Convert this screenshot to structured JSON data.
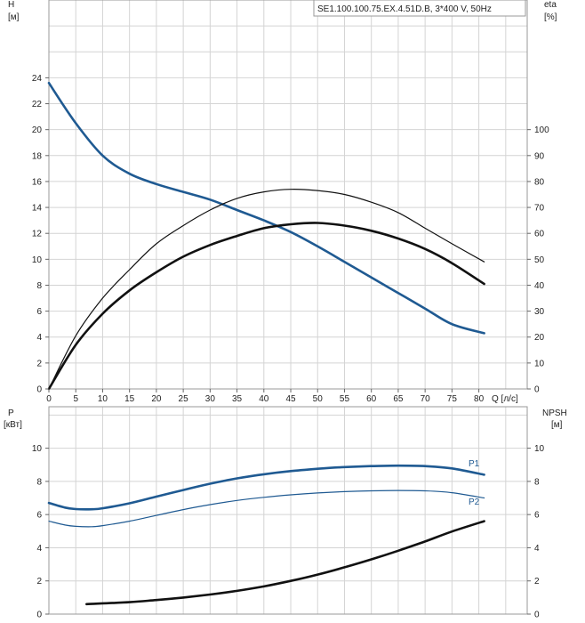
{
  "chart_data": [
    {
      "type": "line",
      "legend_box": "SE1.100.100.75.EX.4.51D.B, 3*400 V, 50Hz",
      "x_label": "Q [л/с]",
      "x_ticks": [
        0,
        5,
        10,
        15,
        20,
        25,
        30,
        35,
        40,
        45,
        50,
        55,
        60,
        65,
        70,
        75,
        80
      ],
      "xlim": [
        0,
        89
      ],
      "y_left_label_line1": "H",
      "y_left_label_line2": "[м]",
      "y_left_ticks": [
        0,
        2,
        4,
        6,
        8,
        10,
        12,
        14,
        16,
        18,
        20,
        22,
        24
      ],
      "ylim_left": [
        0,
        30
      ],
      "y_right_label_line1": "eta",
      "y_right_label_line2": "[%]",
      "y_right_ticks": [
        0,
        10,
        20,
        30,
        40,
        50,
        60,
        70,
        80,
        90,
        100
      ],
      "ylim_right": [
        0,
        150
      ],
      "grid": true,
      "series": [
        {
          "key": "H",
          "axis": "left",
          "color": "#1f5a92",
          "width": 2.6,
          "x": [
            0,
            5,
            10,
            15,
            20,
            25,
            30,
            35,
            40,
            45,
            50,
            55,
            60,
            65,
            70,
            75,
            81
          ],
          "y": [
            23.6,
            20.5,
            18.0,
            16.6,
            15.8,
            15.2,
            14.6,
            13.8,
            13.0,
            12.1,
            11.0,
            9.8,
            8.6,
            7.4,
            6.2,
            5.0,
            4.3
          ]
        },
        {
          "key": "eta_thin",
          "axis": "right",
          "color": "#111111",
          "width": 1.2,
          "x": [
            0,
            5,
            10,
            15,
            20,
            25,
            30,
            35,
            40,
            45,
            50,
            55,
            60,
            65,
            70,
            75,
            81
          ],
          "y": [
            0,
            20.5,
            35,
            46,
            56,
            63,
            69,
            73.5,
            76,
            77,
            76.5,
            75,
            72,
            68,
            62,
            56,
            49
          ]
        },
        {
          "key": "eta_thick",
          "axis": "right",
          "color": "#111111",
          "width": 2.6,
          "x": [
            0,
            5,
            10,
            15,
            20,
            25,
            30,
            35,
            40,
            45,
            50,
            55,
            60,
            65,
            70,
            75,
            81
          ],
          "y": [
            0,
            17,
            29,
            38,
            45,
            51,
            55.5,
            59,
            62,
            63.5,
            64,
            63,
            61,
            58,
            54,
            48.5,
            40.5
          ]
        }
      ]
    },
    {
      "type": "line",
      "y_left_label_line1": "P",
      "y_left_label_line2": "[кВт]",
      "y_left_ticks": [
        0,
        2,
        4,
        6,
        8,
        10
      ],
      "ylim_left": [
        0,
        12.5
      ],
      "y_right_label_line1": "NPSH",
      "y_right_label_line2": "[м]",
      "y_right_ticks": [
        0,
        2,
        4,
        6,
        8,
        10
      ],
      "ylim_right": [
        0,
        12.5
      ],
      "xlim": [
        0,
        89
      ],
      "grid": true,
      "series": [
        {
          "key": "P1",
          "name": "P1",
          "axis": "left",
          "color": "#1f5a92",
          "width": 2.6,
          "x": [
            0,
            3,
            5,
            8,
            10,
            15,
            20,
            25,
            30,
            35,
            40,
            45,
            50,
            55,
            60,
            65,
            70,
            75,
            81
          ],
          "y": [
            6.7,
            6.42,
            6.33,
            6.32,
            6.38,
            6.68,
            7.08,
            7.48,
            7.86,
            8.18,
            8.43,
            8.62,
            8.76,
            8.86,
            8.92,
            8.95,
            8.92,
            8.78,
            8.4
          ]
        },
        {
          "key": "P2",
          "name": "P2",
          "axis": "left",
          "color": "#1f5a92",
          "width": 1.2,
          "x": [
            0,
            3,
            5,
            8,
            10,
            15,
            20,
            25,
            30,
            35,
            40,
            45,
            50,
            55,
            60,
            65,
            70,
            75,
            81
          ],
          "y": [
            5.6,
            5.37,
            5.29,
            5.27,
            5.33,
            5.6,
            5.95,
            6.3,
            6.6,
            6.85,
            7.04,
            7.19,
            7.3,
            7.38,
            7.43,
            7.45,
            7.43,
            7.32,
            7.0
          ]
        },
        {
          "key": "NPSH",
          "axis": "right",
          "color": "#111111",
          "width": 2.6,
          "x": [
            7,
            15,
            20,
            25,
            30,
            35,
            40,
            45,
            50,
            55,
            60,
            65,
            70,
            75,
            81
          ],
          "y": [
            0.6,
            0.72,
            0.85,
            1.0,
            1.18,
            1.4,
            1.67,
            2.0,
            2.38,
            2.82,
            3.3,
            3.82,
            4.38,
            4.98,
            5.6
          ]
        }
      ]
    }
  ]
}
